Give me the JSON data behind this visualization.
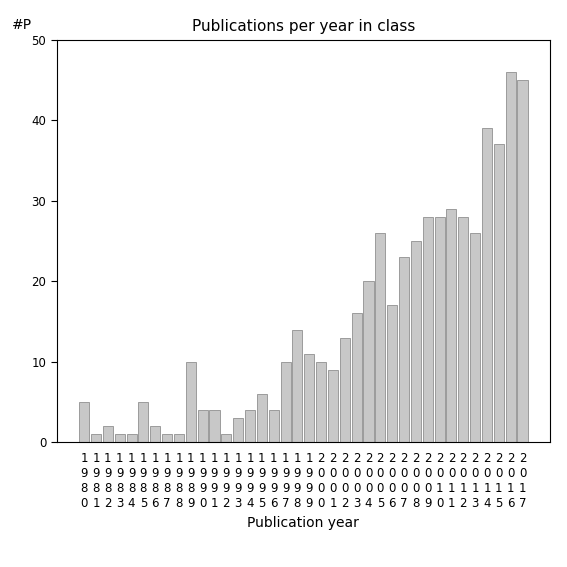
{
  "years": [
    "1980",
    "1981",
    "1982",
    "1983",
    "1984",
    "1985",
    "1986",
    "1987",
    "1988",
    "1989",
    "1990",
    "1991",
    "1992",
    "1993",
    "1994",
    "1995",
    "1996",
    "1997",
    "1998",
    "1999",
    "2000",
    "2001",
    "2002",
    "2003",
    "2004",
    "2005",
    "2006",
    "2007",
    "2008",
    "2009",
    "2010",
    "2011",
    "2012",
    "2013",
    "2014",
    "2015",
    "2016",
    "2017"
  ],
  "values": [
    5,
    1,
    2,
    1,
    1,
    5,
    2,
    1,
    1,
    10,
    4,
    4,
    1,
    3,
    4,
    6,
    4,
    10,
    14,
    11,
    10,
    9,
    13,
    16,
    20,
    26,
    17,
    23,
    25,
    28,
    28,
    29,
    28,
    26,
    39,
    37,
    46,
    45
  ],
  "bar_color": "#c8c8c8",
  "bar_edge_color": "#909090",
  "title": "Publications per year in class",
  "xlabel": "Publication year",
  "ylabel": "#P",
  "ylim": [
    0,
    50
  ],
  "yticks": [
    0,
    10,
    20,
    30,
    40,
    50
  ],
  "background_color": "#ffffff",
  "title_fontsize": 11,
  "label_fontsize": 10,
  "tick_fontsize": 8.5
}
